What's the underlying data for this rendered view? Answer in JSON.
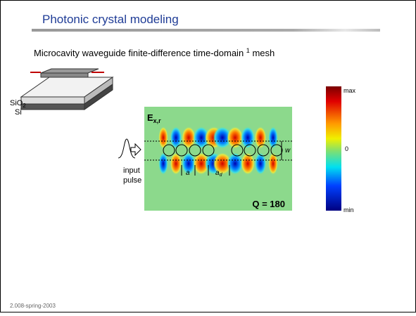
{
  "header": {
    "title": "Photonic crystal modeling"
  },
  "subtitle": {
    "text": "Microcavity waveguide finite-difference time-domain",
    "footnote_mark": "1",
    "tail": "mesh"
  },
  "device": {
    "label_sio2": "SiO",
    "label_sio2_sub": "2",
    "label_si": "Si"
  },
  "field": {
    "label": "E",
    "label_sub": "x,r",
    "q": "Q = 180",
    "lattice": "a",
    "defect": "a",
    "defect_sub": "d",
    "width": "w"
  },
  "input": {
    "line1": "input",
    "line2": "pulse"
  },
  "colorbar": {
    "max": "max",
    "zero": "0",
    "min": "min"
  },
  "footer": {
    "text": "2.008-spring-2003"
  }
}
